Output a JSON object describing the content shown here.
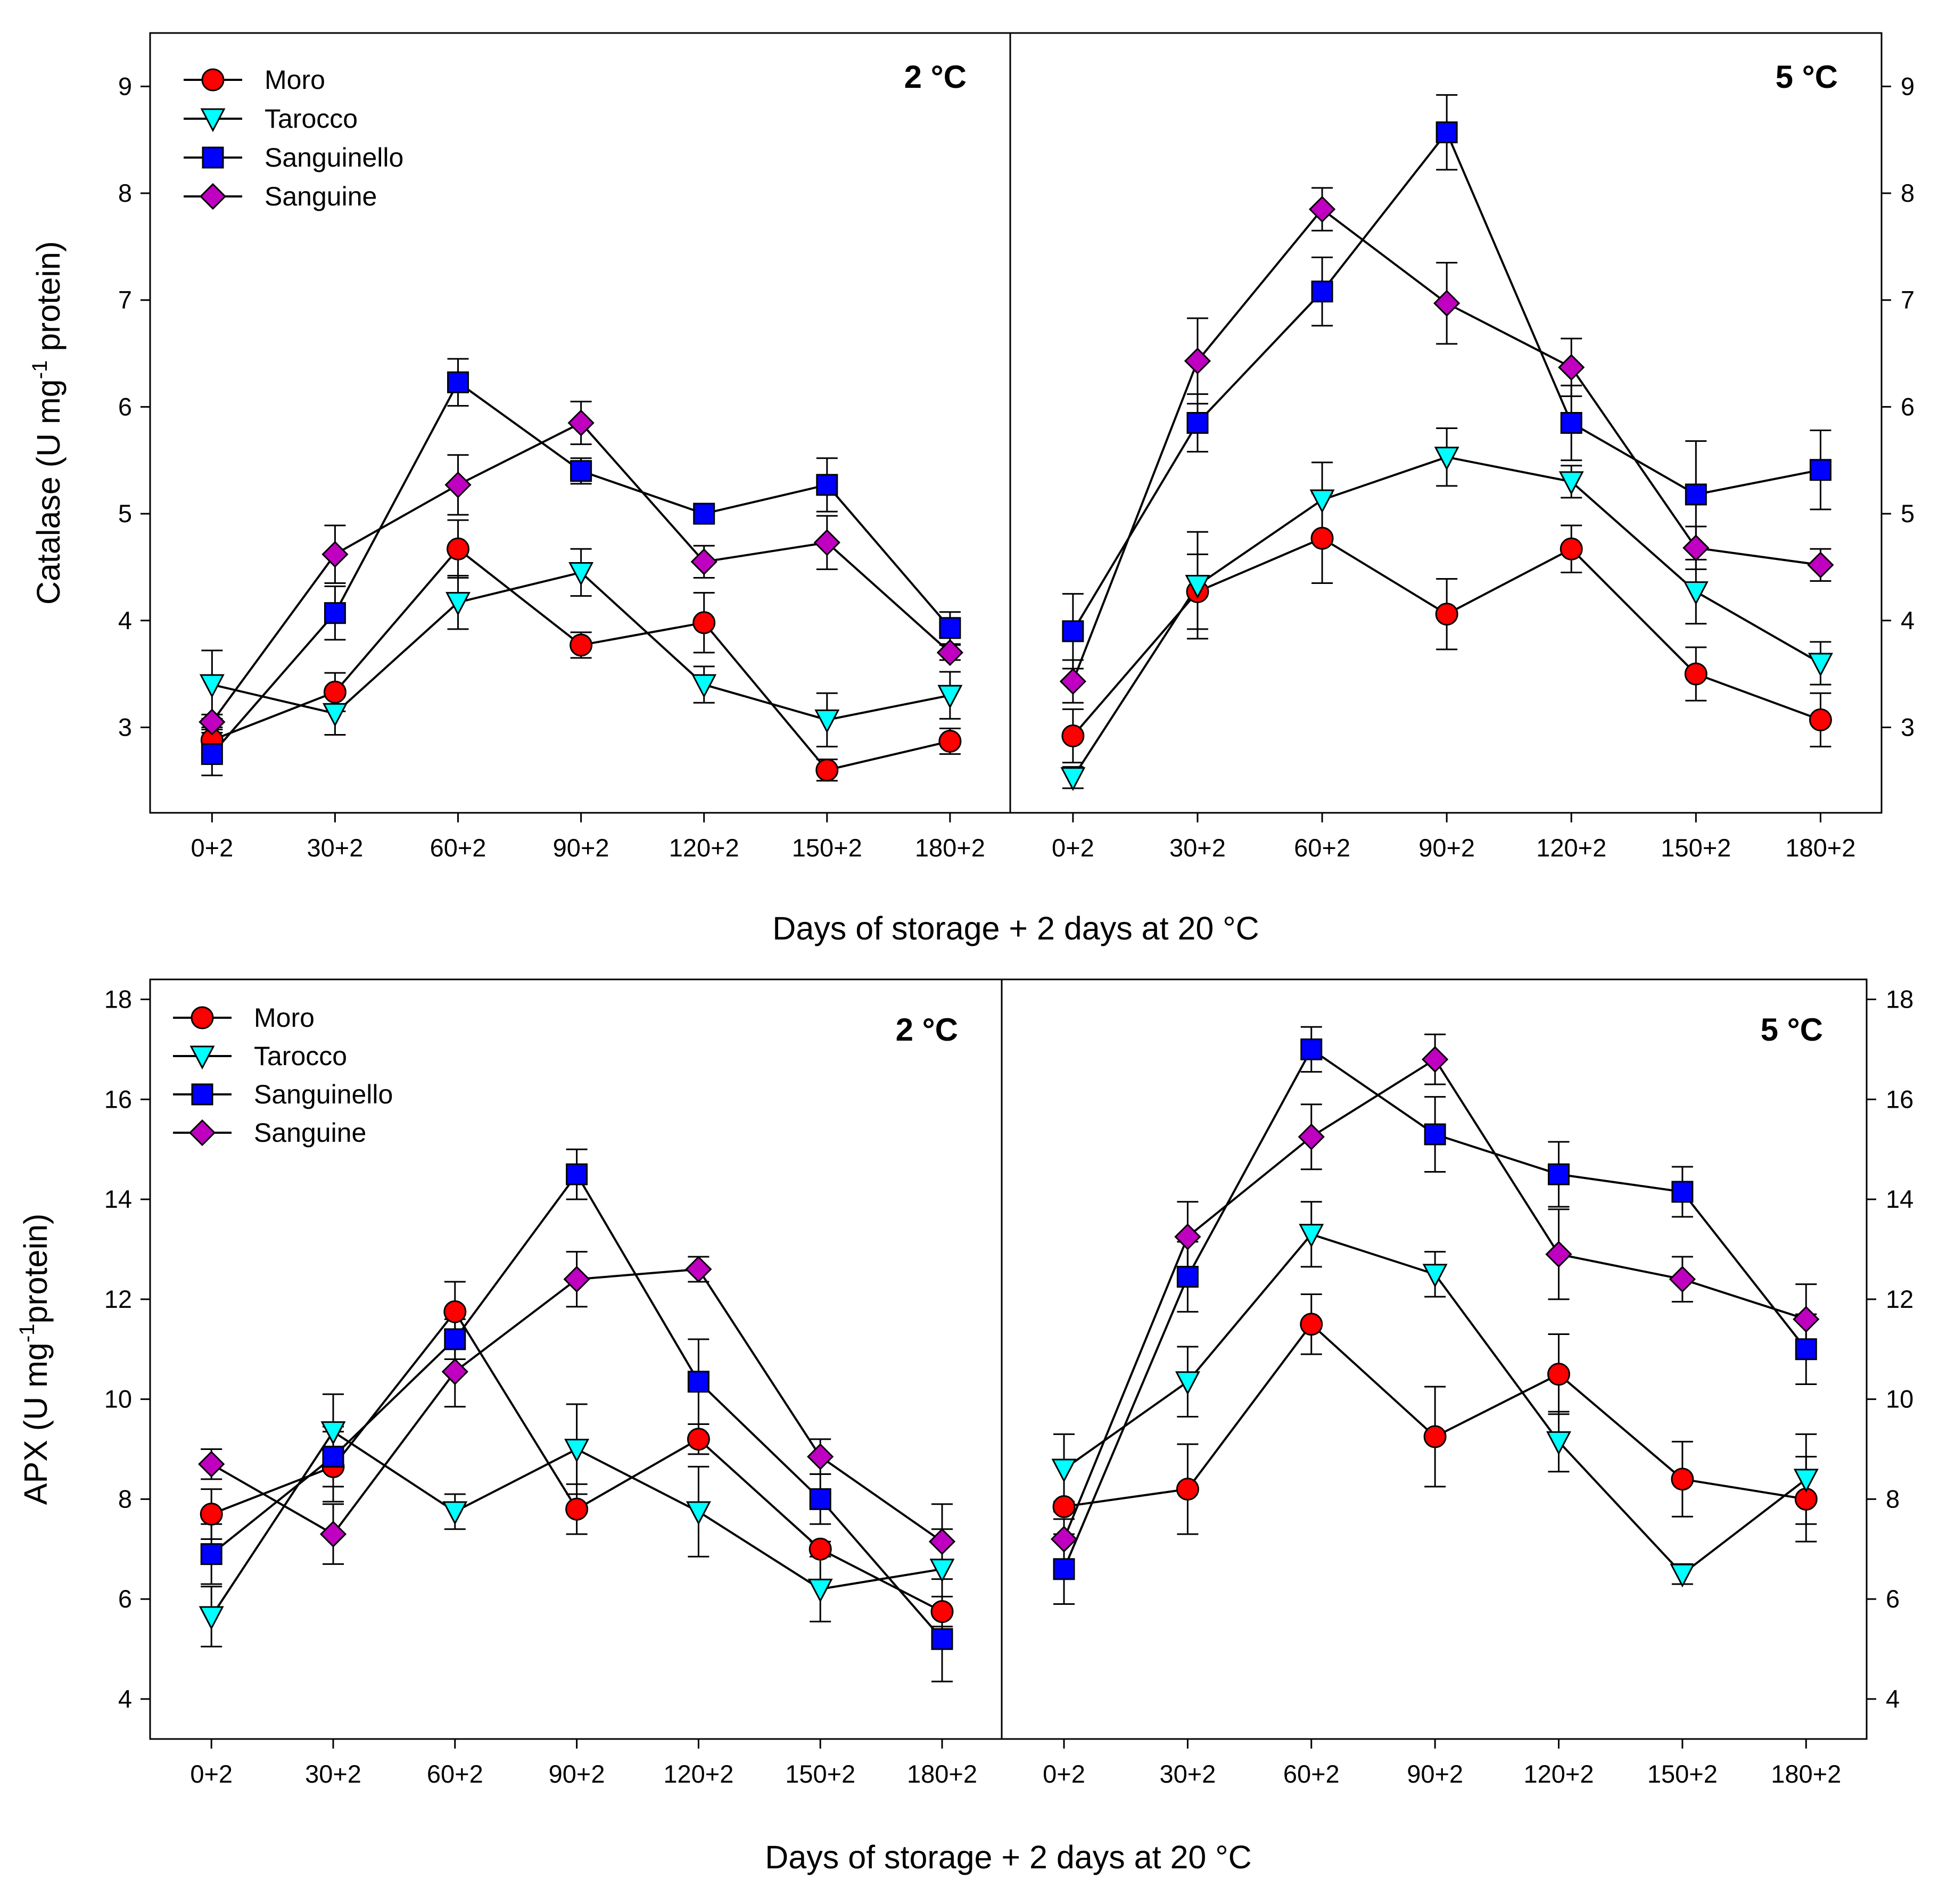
{
  "colors": {
    "Moro": "#ff0000",
    "Tarocco": "#00ffff",
    "Sanguinello": "#0000ff",
    "Sanguine": "#c000c0"
  },
  "chart_data": [
    {
      "type": "line",
      "name": "catalase",
      "ylabel_parts": [
        "Catalase (U mg",
        "-1",
        " protein)"
      ],
      "xlabel": "Days of storage + 2 days at 20 °C",
      "categories": [
        "0+2",
        "30+2",
        "60+2",
        "90+2",
        "120+2",
        "150+2",
        "180+2"
      ],
      "ylim": [
        2.2,
        9.5
      ],
      "yticks": [
        3,
        4,
        5,
        6,
        7,
        8,
        9
      ],
      "legend": [
        "Moro",
        "Tarocco",
        "Sanguinello",
        "Sanguine"
      ],
      "panels": [
        {
          "title": "2 °C",
          "series": [
            {
              "name": "Moro",
              "marker": "circle",
              "values": [
                2.88,
                3.33,
                4.67,
                3.77,
                3.98,
                2.6,
                2.87
              ],
              "errors": [
                0.12,
                0.18,
                0.27,
                0.12,
                0.28,
                0.1,
                0.12
              ]
            },
            {
              "name": "Tarocco",
              "marker": "triangle",
              "values": [
                3.4,
                3.13,
                4.17,
                4.45,
                3.4,
                3.07,
                3.3
              ],
              "errors": [
                0.32,
                0.2,
                0.25,
                0.22,
                0.17,
                0.25,
                0.22
              ]
            },
            {
              "name": "Sanguinello",
              "marker": "square",
              "values": [
                2.75,
                4.07,
                6.23,
                5.4,
                5.0,
                5.27,
                3.93
              ],
              "errors": [
                0.2,
                0.25,
                0.22,
                0.12,
                0.07,
                0.25,
                0.15
              ]
            },
            {
              "name": "Sanguine",
              "marker": "diamond",
              "values": [
                3.05,
                4.62,
                5.27,
                5.85,
                4.55,
                4.73,
                3.7
              ],
              "errors": [
                0.07,
                0.27,
                0.28,
                0.2,
                0.15,
                0.25,
                0.07
              ]
            }
          ]
        },
        {
          "title": "5 °C",
          "series": [
            {
              "name": "Moro",
              "marker": "circle",
              "values": [
                2.92,
                4.27,
                4.77,
                4.06,
                4.67,
                3.5,
                3.07
              ],
              "errors": [
                0.25,
                0.35,
                0.42,
                0.33,
                0.22,
                0.25,
                0.25
              ]
            },
            {
              "name": "Tarocco",
              "marker": "triangle",
              "values": [
                2.53,
                4.33,
                5.13,
                5.53,
                5.3,
                4.27,
                3.6
              ],
              "errors": [
                0.1,
                0.5,
                0.35,
                0.27,
                0.15,
                0.3,
                0.2
              ]
            },
            {
              "name": "Sanguinello",
              "marker": "square",
              "values": [
                3.9,
                5.85,
                7.08,
                8.57,
                5.85,
                5.18,
                5.41
              ],
              "errors": [
                0.35,
                0.27,
                0.32,
                0.35,
                0.35,
                0.5,
                0.37
              ]
            },
            {
              "name": "Sanguine",
              "marker": "diamond",
              "values": [
                3.43,
                6.43,
                7.85,
                6.97,
                6.37,
                4.68,
                4.52
              ],
              "errors": [
                0.2,
                0.4,
                0.2,
                0.38,
                0.27,
                0.2,
                0.15
              ]
            }
          ]
        }
      ]
    },
    {
      "type": "line",
      "name": "apx",
      "ylabel_parts": [
        "APX (U mg",
        "-1",
        "protein)"
      ],
      "xlabel": "Days of storage + 2 days at 20 °C",
      "categories": [
        "0+2",
        "30+2",
        "60+2",
        "90+2",
        "120+2",
        "150+2",
        "180+2"
      ],
      "ylim": [
        3.2,
        18.4
      ],
      "yticks": [
        4,
        6,
        8,
        10,
        12,
        14,
        16,
        18
      ],
      "legend": [
        "Moro",
        "Tarocco",
        "Sanguinello",
        "Sanguine"
      ],
      "panels": [
        {
          "title": "2 °C",
          "series": [
            {
              "name": "Moro",
              "marker": "circle",
              "values": [
                7.7,
                8.65,
                11.75,
                7.8,
                9.2,
                7.0,
                5.75
              ],
              "errors": [
                0.5,
                0.7,
                0.6,
                0.5,
                0.3,
                0.15,
                0.3
              ]
            },
            {
              "name": "Tarocco",
              "marker": "triangle",
              "values": [
                5.65,
                9.35,
                7.75,
                9.0,
                7.75,
                6.2,
                6.6
              ],
              "errors": [
                0.6,
                0.75,
                0.35,
                0.9,
                0.9,
                0.65,
                0.8
              ]
            },
            {
              "name": "Sanguinello",
              "marker": "square",
              "values": [
                6.9,
                8.85,
                11.2,
                14.5,
                10.35,
                8.0,
                5.2
              ],
              "errors": [
                0.6,
                0.6,
                0.4,
                0.5,
                0.85,
                0.5,
                0.85
              ]
            },
            {
              "name": "Sanguine",
              "marker": "diamond",
              "values": [
                8.7,
                7.3,
                10.55,
                12.4,
                12.6,
                8.85,
                7.15
              ],
              "errors": [
                0.3,
                0.6,
                0.7,
                0.55,
                0.25,
                0.35,
                0.75
              ]
            }
          ]
        },
        {
          "title": "5 °C",
          "series": [
            {
              "name": "Moro",
              "marker": "circle",
              "values": [
                7.85,
                8.2,
                11.5,
                9.25,
                10.5,
                8.4,
                8.0
              ],
              "errors": [
                0.1,
                0.9,
                0.6,
                1.0,
                0.8,
                0.75,
                0.85
              ]
            },
            {
              "name": "Tarocco",
              "marker": "triangle",
              "values": [
                8.6,
                10.35,
                13.3,
                12.5,
                9.15,
                6.5,
                8.4
              ],
              "errors": [
                0.7,
                0.7,
                0.65,
                0.45,
                0.6,
                0.2,
                0.9
              ]
            },
            {
              "name": "Sanguinello",
              "marker": "square",
              "values": [
                6.6,
                12.45,
                17.0,
                15.3,
                14.5,
                14.15,
                11.0
              ],
              "errors": [
                0.7,
                0.7,
                0.45,
                0.75,
                0.65,
                0.5,
                0.7
              ]
            },
            {
              "name": "Sanguine",
              "marker": "diamond",
              "values": [
                7.2,
                13.25,
                15.25,
                16.8,
                12.9,
                12.4,
                11.6
              ],
              "errors": [
                0.4,
                0.7,
                0.65,
                0.5,
                0.9,
                0.45,
                0.7
              ]
            }
          ]
        }
      ]
    }
  ]
}
